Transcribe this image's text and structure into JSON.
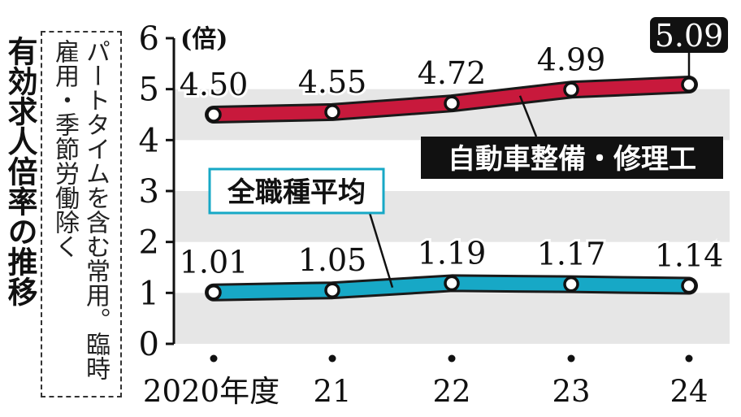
{
  "sidebar": {
    "title": "有効求人倍率の推移",
    "note": "パートタイムを含む常用。臨時雇用・季節労働除く"
  },
  "chart_data": {
    "type": "line",
    "ylabel": "(倍)",
    "ylim": [
      0,
      6
    ],
    "yticks": [
      "0",
      "1",
      "2",
      "3",
      "4",
      "5",
      "6"
    ],
    "categories": [
      "2020年度",
      "21",
      "22",
      "23",
      "24"
    ],
    "grid_bands": true,
    "series": [
      {
        "name": "自動車整備・修理工",
        "values": [
          4.5,
          4.55,
          4.72,
          4.99,
          5.09
        ],
        "labels": [
          "4.50",
          "4.55",
          "4.72",
          "4.99",
          "5.09"
        ],
        "color": "#c8193c",
        "legend_style": "black-box"
      },
      {
        "name": "全職種平均",
        "values": [
          1.01,
          1.05,
          1.19,
          1.17,
          1.14
        ],
        "labels": [
          "1.01",
          "1.05",
          "1.19",
          "1.17",
          "1.14"
        ],
        "color": "#17a8c6",
        "legend_style": "outlined-box"
      }
    ],
    "highlight": {
      "series": 0,
      "index": 4
    }
  }
}
